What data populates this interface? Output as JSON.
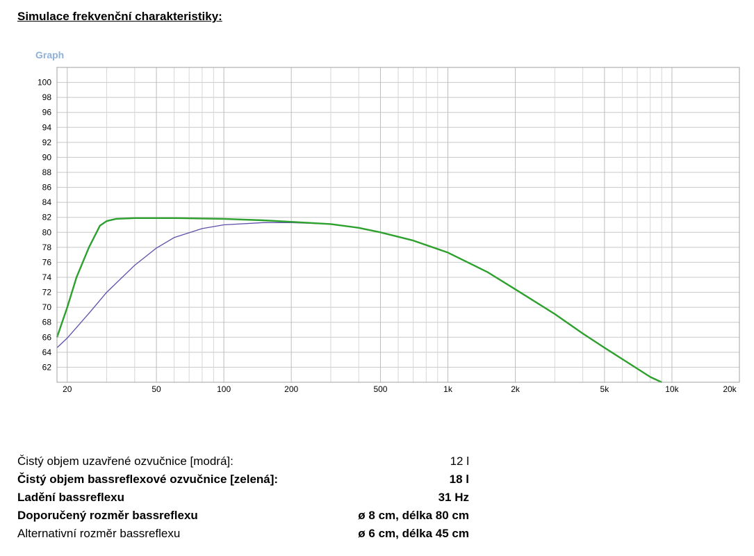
{
  "heading": "Simulace frekvenční charakteristiky:",
  "graph_label": "Graph",
  "chart_data": {
    "type": "line",
    "x_scale": "log",
    "xlim": [
      18,
      20000
    ],
    "ylim": [
      60,
      102
    ],
    "y_ticks": [
      100,
      98,
      96,
      94,
      92,
      90,
      88,
      86,
      84,
      82,
      80,
      78,
      76,
      74,
      72,
      70,
      68,
      66,
      64,
      62
    ],
    "x_ticks": [
      {
        "value": 20,
        "label": "20"
      },
      {
        "value": 50,
        "label": "50"
      },
      {
        "value": 100,
        "label": "100"
      },
      {
        "value": 200,
        "label": "200"
      },
      {
        "value": 500,
        "label": "500"
      },
      {
        "value": 1000,
        "label": "1k"
      },
      {
        "value": 2000,
        "label": "2k"
      },
      {
        "value": 5000,
        "label": "5k"
      },
      {
        "value": 10000,
        "label": "10k"
      },
      {
        "value": 20000,
        "label": "20k"
      }
    ],
    "grid": true,
    "series": [
      {
        "color": "#5b4fa8",
        "points": [
          [
            18,
            64.6
          ],
          [
            20,
            65.9
          ],
          [
            25,
            69.2
          ],
          [
            30,
            72.0
          ],
          [
            40,
            75.6
          ],
          [
            50,
            77.9
          ],
          [
            60,
            79.3
          ],
          [
            80,
            80.5
          ],
          [
            100,
            81.0
          ],
          [
            150,
            81.3
          ],
          [
            200,
            81.3
          ],
          [
            300,
            81.1
          ],
          [
            400,
            80.6
          ],
          [
            500,
            80.0
          ],
          [
            700,
            78.9
          ],
          [
            1000,
            77.3
          ],
          [
            1500,
            74.7
          ],
          [
            2000,
            72.4
          ],
          [
            3000,
            69.1
          ],
          [
            4000,
            66.5
          ],
          [
            5000,
            64.6
          ],
          [
            6000,
            63.1
          ],
          [
            8000,
            60.7
          ],
          [
            9000,
            60.0
          ]
        ]
      },
      {
        "color": "#2da02d",
        "points": [
          [
            18,
            66.0
          ],
          [
            20,
            70.0
          ],
          [
            22,
            74.0
          ],
          [
            25,
            78.0
          ],
          [
            28,
            80.9
          ],
          [
            30,
            81.5
          ],
          [
            33,
            81.8
          ],
          [
            40,
            81.9
          ],
          [
            60,
            81.9
          ],
          [
            100,
            81.8
          ],
          [
            150,
            81.6
          ],
          [
            200,
            81.4
          ],
          [
            300,
            81.1
          ],
          [
            400,
            80.6
          ],
          [
            500,
            80.0
          ],
          [
            700,
            78.9
          ],
          [
            1000,
            77.3
          ],
          [
            1500,
            74.7
          ],
          [
            2000,
            72.4
          ],
          [
            3000,
            69.1
          ],
          [
            4000,
            66.5
          ],
          [
            5000,
            64.6
          ],
          [
            6000,
            63.1
          ],
          [
            8000,
            60.7
          ],
          [
            9000,
            60.0
          ]
        ]
      }
    ]
  },
  "specs": [
    {
      "label": "Čistý objem uzavřené ozvučnice [modrá]:",
      "value": "12 l",
      "label_bold": false,
      "value_bold": false
    },
    {
      "label": "Čistý objem bassreflexové ozvučnice [zelená]:",
      "value": "18 l",
      "label_bold": true,
      "value_bold": true
    },
    {
      "label": "Ladění bassreflexu",
      "value": "31 Hz",
      "label_bold": true,
      "value_bold": true
    },
    {
      "label": "Doporučený rozměr bassreflexu",
      "value": "ø 8 cm, délka 80 cm",
      "label_bold": true,
      "value_bold": true
    },
    {
      "label": "Alternativní rozměr bassreflexu",
      "value": "ø 6 cm, délka 45 cm",
      "label_bold": false,
      "value_bold": true
    }
  ]
}
